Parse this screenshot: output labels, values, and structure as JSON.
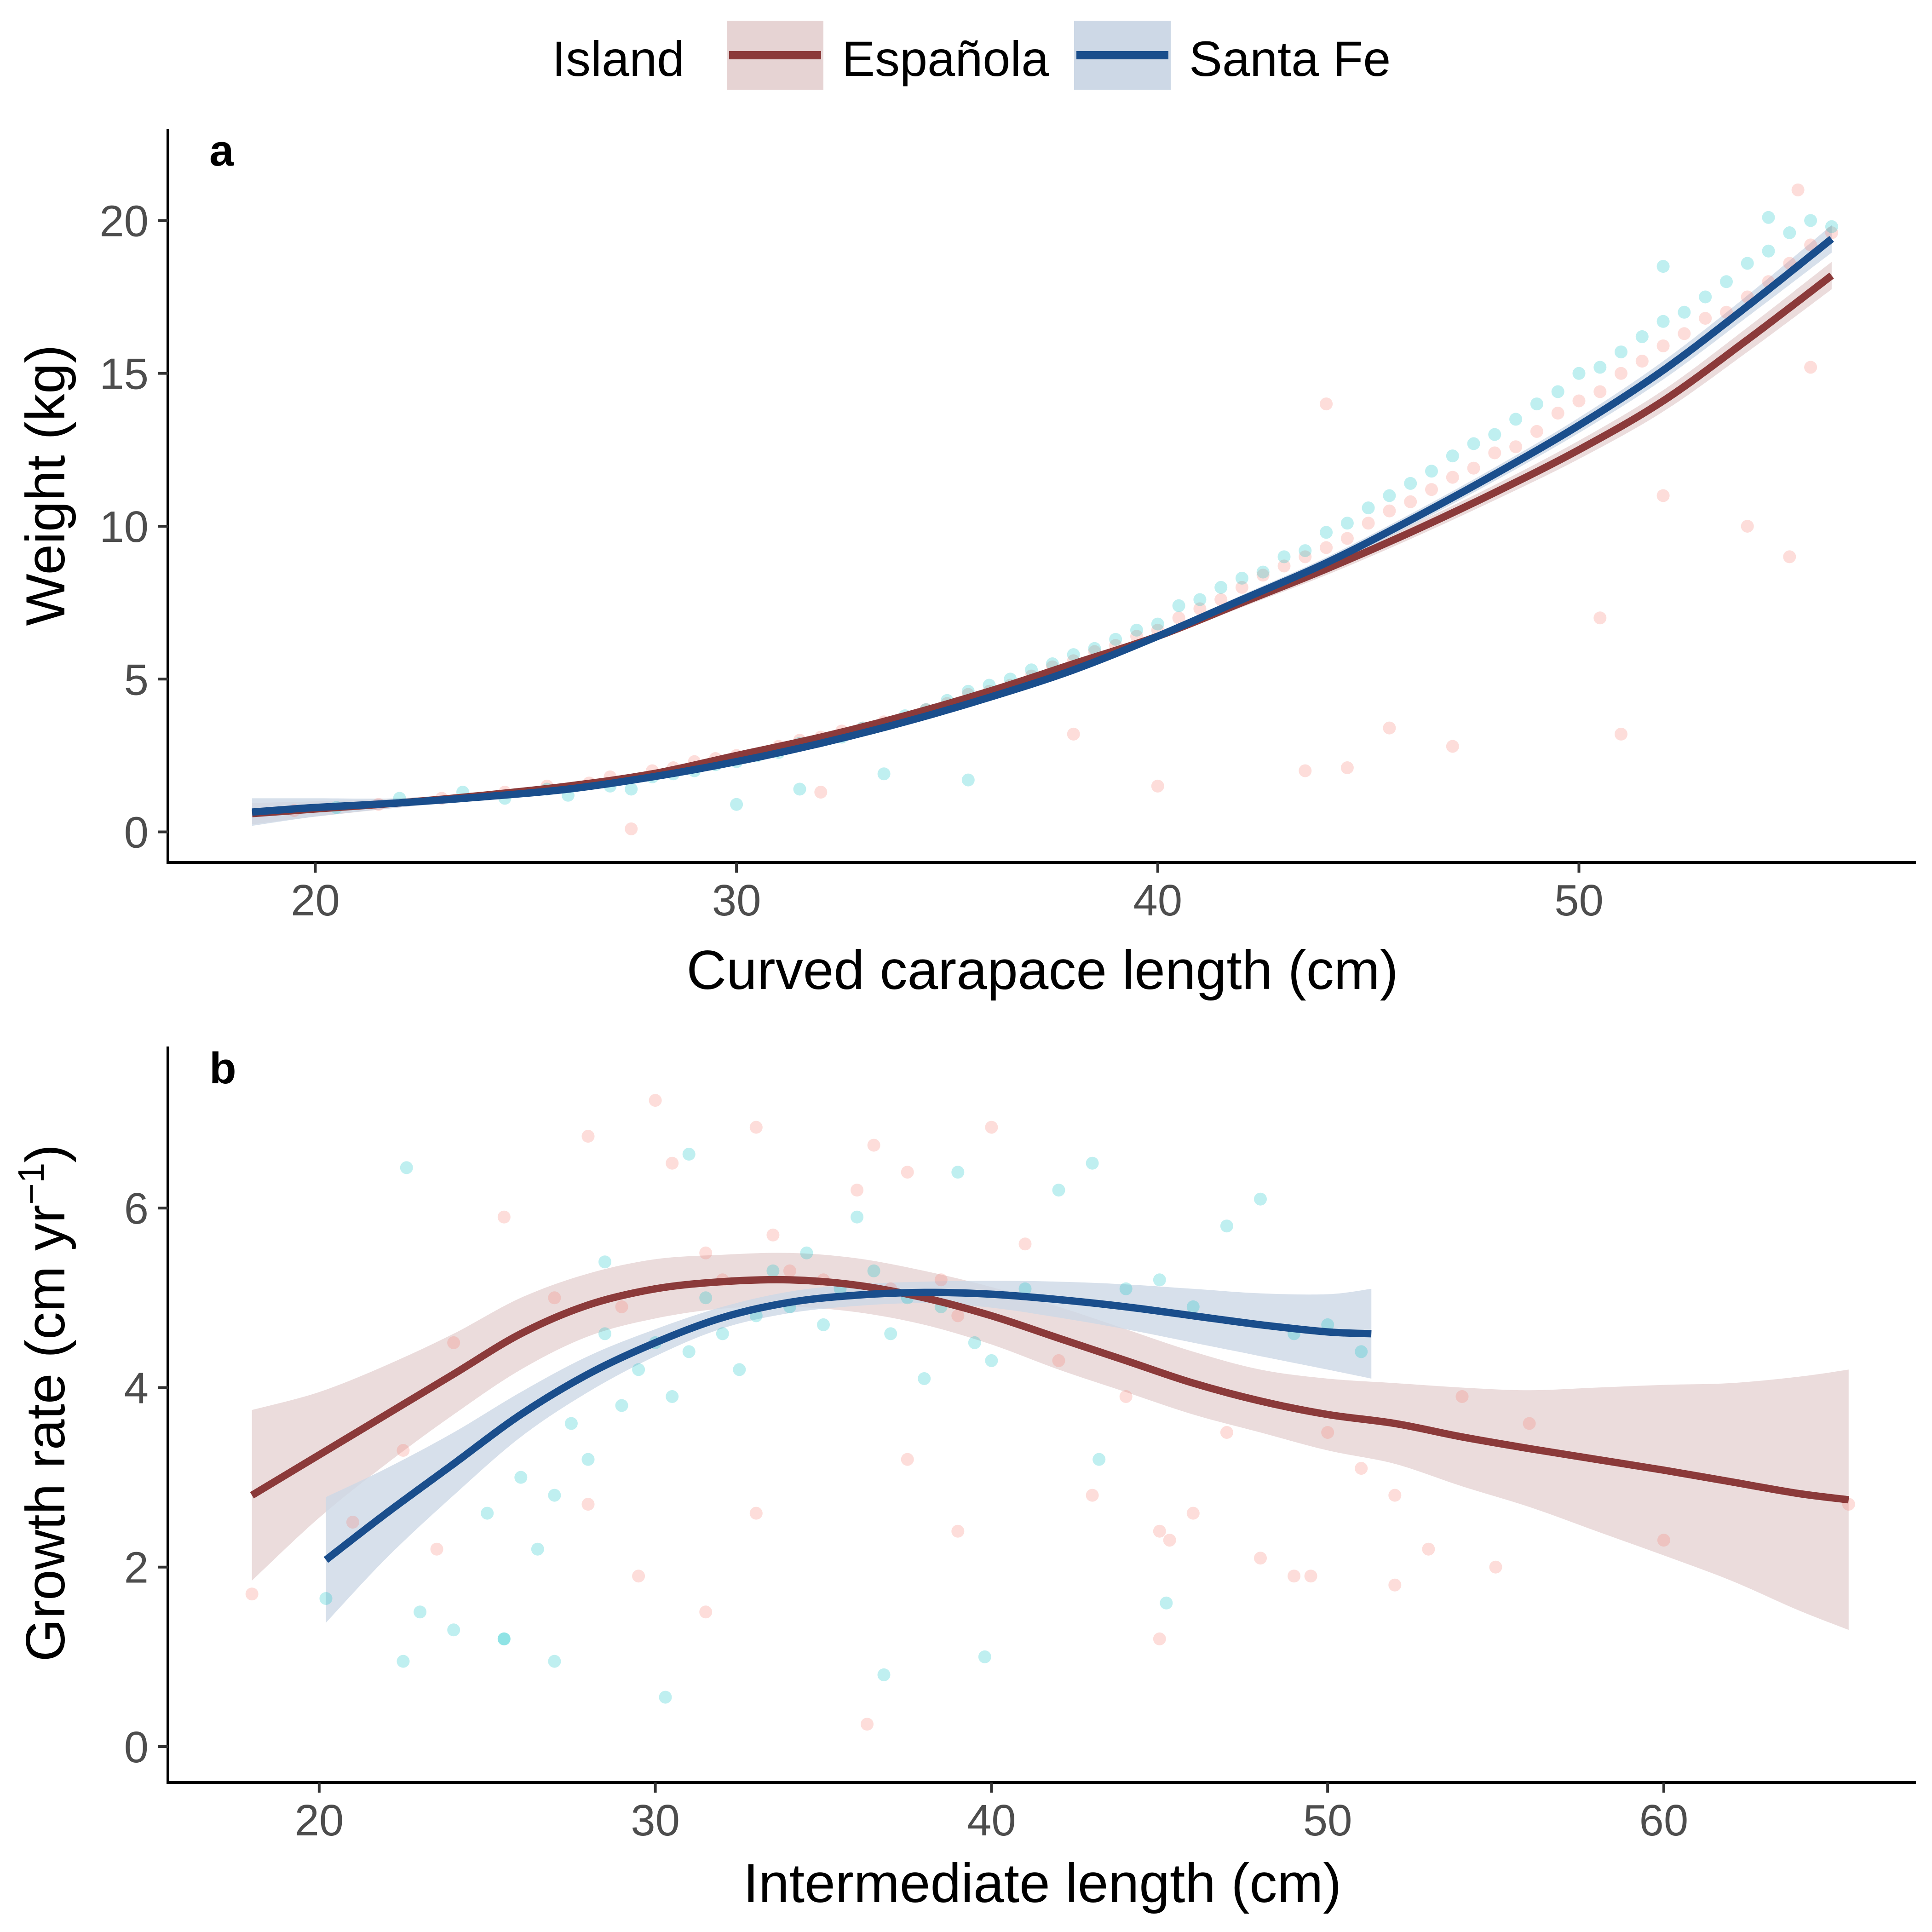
{
  "legend": {
    "title": "Island",
    "entries": [
      {
        "label": "Española",
        "line_color": "#8b3a3a",
        "band_color": "#e6d3d3"
      },
      {
        "label": "Santa Fe",
        "line_color": "#1a4e8c",
        "band_color": "#cdd8e6"
      }
    ]
  },
  "point_colors": {
    "Española": "#f8766d",
    "Santa Fe": "#00bfc4"
  },
  "chart_data": [
    {
      "type": "scatter",
      "panel": "a",
      "xlabel": "Curved carapace length (cm)",
      "ylabel": "Weight (kg)",
      "xlim": [
        16.5,
        58
      ],
      "ylim": [
        -1,
        23
      ],
      "xticks": [
        20,
        30,
        40,
        50
      ],
      "yticks": [
        0,
        5,
        10,
        15,
        20
      ],
      "grid": false,
      "legend_position": "top",
      "series": [
        {
          "name": "Española",
          "kind": "points",
          "x": [
            19.5,
            21.5,
            23.0,
            24.5,
            25.5,
            26.5,
            27.0,
            28.0,
            28.5,
            29.0,
            29.5,
            30.0,
            31.0,
            31.5,
            32.0,
            32.5,
            33.0,
            33.5,
            34.0,
            34.5,
            35.0,
            35.5,
            36.0,
            36.5,
            37.0,
            37.5,
            38.0,
            38.5,
            39.0,
            39.5,
            40.0,
            40.5,
            41.0,
            41.5,
            42.0,
            42.5,
            43.0,
            43.5,
            44.0,
            44.5,
            45.0,
            45.5,
            46.0,
            46.5,
            47.0,
            47.5,
            48.0,
            48.5,
            49.0,
            49.5,
            50.0,
            50.5,
            51.0,
            51.5,
            52.0,
            52.5,
            53.0,
            53.5,
            54.0,
            54.5,
            55.0,
            55.5,
            56.0,
            27.5,
            32.0,
            38.0,
            40.0,
            43.5,
            44.0,
            45.5,
            47.0,
            50.5,
            51.0,
            52.0,
            54.0,
            55.0,
            55.2,
            55.5,
            44.5
          ],
          "y": [
            0.7,
            0.9,
            1.1,
            1.3,
            1.5,
            1.6,
            1.8,
            2.0,
            2.1,
            2.3,
            2.4,
            2.5,
            2.8,
            3.0,
            3.1,
            3.3,
            3.4,
            3.6,
            3.7,
            4.0,
            4.2,
            4.5,
            4.6,
            4.8,
            5.1,
            5.4,
            5.6,
            5.9,
            6.1,
            6.4,
            6.6,
            7.0,
            7.3,
            7.6,
            8.0,
            8.4,
            8.7,
            9.0,
            9.3,
            9.6,
            10.1,
            10.5,
            10.8,
            11.2,
            11.6,
            11.9,
            12.4,
            12.6,
            13.1,
            13.7,
            14.1,
            14.4,
            15.0,
            15.4,
            15.9,
            16.3,
            16.8,
            17.0,
            17.5,
            18.0,
            18.6,
            19.2,
            19.6,
            0.1,
            1.3,
            3.2,
            1.5,
            2.0,
            14.0,
            3.4,
            2.8,
            7.0,
            3.2,
            11.0,
            10.0,
            9.0,
            21.0,
            15.2,
            2.1
          ],
          "color": "#f8766d"
        },
        {
          "name": "Santa Fe",
          "kind": "points",
          "x": [
            20.5,
            22.0,
            23.5,
            24.5,
            25.5,
            26.0,
            27.0,
            27.5,
            28.0,
            28.5,
            29.0,
            29.5,
            30.0,
            30.5,
            31.0,
            31.5,
            32.0,
            32.5,
            33.0,
            33.5,
            34.0,
            34.5,
            35.0,
            35.5,
            36.0,
            36.5,
            37.0,
            37.5,
            38.0,
            38.5,
            39.0,
            39.5,
            40.0,
            40.5,
            41.0,
            41.5,
            42.0,
            42.5,
            43.0,
            43.5,
            44.0,
            44.5,
            45.0,
            45.5,
            46.0,
            46.5,
            47.0,
            47.5,
            48.0,
            48.5,
            49.0,
            49.5,
            50.0,
            50.5,
            51.0,
            51.5,
            52.0,
            52.5,
            53.0,
            53.5,
            54.0,
            54.5,
            55.0,
            55.5,
            56.0,
            30.0,
            31.5,
            33.5,
            35.5,
            52.0,
            54.5
          ],
          "y": [
            0.8,
            1.1,
            1.3,
            1.1,
            1.4,
            1.2,
            1.5,
            1.4,
            1.8,
            1.9,
            2.0,
            2.2,
            2.3,
            2.5,
            2.6,
            2.9,
            3.0,
            3.1,
            3.4,
            3.5,
            3.8,
            4.0,
            4.3,
            4.6,
            4.8,
            5.0,
            5.3,
            5.5,
            5.8,
            6.0,
            6.3,
            6.6,
            6.8,
            7.4,
            7.6,
            8.0,
            8.3,
            8.5,
            9.0,
            9.2,
            9.8,
            10.1,
            10.6,
            11.0,
            11.4,
            11.8,
            12.3,
            12.7,
            13.0,
            13.5,
            14.0,
            14.4,
            15.0,
            15.2,
            15.7,
            16.2,
            16.7,
            17.0,
            17.5,
            18.0,
            18.6,
            19.0,
            19.6,
            20.0,
            19.8,
            0.9,
            1.4,
            1.9,
            1.7,
            18.5,
            20.1
          ],
          "color": "#00bfc4"
        },
        {
          "name": "Española",
          "kind": "smooth",
          "x": [
            18.5,
            20,
            22,
            24,
            26,
            28,
            30,
            32,
            34,
            36,
            38,
            40,
            42,
            44,
            46,
            48,
            50,
            52,
            54,
            56
          ],
          "y": [
            0.6,
            0.75,
            0.95,
            1.2,
            1.5,
            1.9,
            2.5,
            3.1,
            3.8,
            4.6,
            5.5,
            6.4,
            7.5,
            8.6,
            9.8,
            11.1,
            12.5,
            14.1,
            16.1,
            18.2
          ],
          "band_halfwidth": [
            0.35,
            0.25,
            0.15,
            0.1,
            0.1,
            0.1,
            0.1,
            0.1,
            0.1,
            0.1,
            0.1,
            0.12,
            0.15,
            0.2,
            0.22,
            0.25,
            0.3,
            0.35,
            0.4,
            0.45
          ],
          "color": "#8b3a3a"
        },
        {
          "name": "Santa Fe",
          "kind": "smooth",
          "x": [
            18.5,
            20,
            22,
            24,
            26,
            28,
            30,
            32,
            34,
            36,
            38,
            40,
            42,
            44,
            46,
            48,
            50,
            52,
            54,
            56
          ],
          "y": [
            0.65,
            0.8,
            0.95,
            1.15,
            1.4,
            1.8,
            2.3,
            2.9,
            3.6,
            4.4,
            5.3,
            6.4,
            7.6,
            8.8,
            10.2,
            11.7,
            13.3,
            15.1,
            17.2,
            19.4
          ],
          "band_halfwidth": [
            0.45,
            0.3,
            0.15,
            0.1,
            0.1,
            0.1,
            0.1,
            0.1,
            0.1,
            0.1,
            0.1,
            0.12,
            0.15,
            0.18,
            0.2,
            0.22,
            0.25,
            0.3,
            0.35,
            0.45
          ],
          "color": "#1a4e8c"
        }
      ]
    },
    {
      "type": "scatter",
      "panel": "b",
      "xlabel": "Intermediate length (cm)",
      "ylabel": "Growth rate (cm yr",
      "ylabel_superscript": "−1",
      "ylabel_suffix": ")",
      "xlim": [
        15.5,
        67.5
      ],
      "ylim": [
        -0.4,
        7.8
      ],
      "xticks": [
        20,
        30,
        40,
        50,
        60
      ],
      "yticks": [
        0,
        2,
        4,
        6
      ],
      "grid": false,
      "series": [
        {
          "name": "Española",
          "kind": "points",
          "x": [
            18.0,
            21.0,
            22.5,
            24.0,
            25.5,
            27.0,
            28.0,
            29.0,
            30.0,
            30.5,
            31.5,
            32.0,
            33.0,
            33.5,
            34.0,
            35.0,
            36.0,
            36.5,
            37.0,
            37.5,
            38.5,
            39.0,
            40.0,
            41.0,
            42.0,
            43.0,
            44.0,
            45.0,
            46.0,
            47.0,
            48.0,
            49.0,
            50.0,
            51.0,
            52.0,
            53.0,
            54.0,
            55.0,
            56.0,
            60.0,
            65.5,
            23.5,
            28.0,
            29.5,
            31.5,
            33.0,
            36.3,
            37.5,
            39.0,
            45.0,
            45.3,
            49.5,
            52.0
          ],
          "y": [
            1.7,
            2.5,
            3.3,
            4.5,
            5.9,
            5.0,
            6.8,
            4.9,
            7.2,
            6.5,
            5.5,
            5.2,
            6.9,
            5.7,
            5.3,
            5.2,
            6.2,
            6.7,
            5.1,
            6.4,
            5.2,
            4.8,
            6.9,
            5.6,
            4.3,
            2.8,
            3.9,
            2.4,
            2.6,
            3.5,
            2.1,
            1.9,
            3.5,
            3.1,
            2.8,
            2.2,
            3.9,
            2.0,
            3.6,
            2.3,
            2.7,
            2.2,
            2.7,
            1.9,
            1.5,
            2.6,
            0.25,
            3.2,
            2.4,
            1.2,
            2.3,
            1.9,
            1.8
          ],
          "color": "#f8766d"
        },
        {
          "name": "Santa Fe",
          "kind": "points",
          "x": [
            20.2,
            22.6,
            23.0,
            24.0,
            25.0,
            25.5,
            26.0,
            26.5,
            27.0,
            27.5,
            28.0,
            28.5,
            29.0,
            29.5,
            30.0,
            30.5,
            31.0,
            31.5,
            32.0,
            32.5,
            33.0,
            33.5,
            34.0,
            34.5,
            35.0,
            35.5,
            36.0,
            36.5,
            37.0,
            37.5,
            38.0,
            38.5,
            39.0,
            39.5,
            40.0,
            41.0,
            42.0,
            43.0,
            44.0,
            45.0,
            46.0,
            47.0,
            48.0,
            49.0,
            50.0,
            51.0,
            22.5,
            25.5,
            27.0,
            30.3,
            36.8,
            39.8,
            31.0,
            28.5,
            43.2,
            45.2
          ],
          "y": [
            1.65,
            6.45,
            1.5,
            1.3,
            2.6,
            1.2,
            3.0,
            2.2,
            2.8,
            3.6,
            3.2,
            4.6,
            3.8,
            4.2,
            4.5,
            3.9,
            4.4,
            5.0,
            4.6,
            4.2,
            4.8,
            5.3,
            4.9,
            5.5,
            4.7,
            5.1,
            5.9,
            5.3,
            4.6,
            5.0,
            4.1,
            4.9,
            6.4,
            4.5,
            4.3,
            5.1,
            6.2,
            6.5,
            5.1,
            5.2,
            4.9,
            5.8,
            6.1,
            4.6,
            4.7,
            4.4,
            0.95,
            1.2,
            0.95,
            0.55,
            0.8,
            1.0,
            6.6,
            5.4,
            3.2,
            1.6
          ],
          "color": "#00bfc4"
        },
        {
          "name": "Española",
          "kind": "smooth",
          "x": [
            18.0,
            20,
            22,
            24,
            26,
            28,
            30,
            32,
            34,
            36,
            38,
            40,
            42,
            44,
            46,
            48,
            50,
            52,
            54,
            56,
            58,
            60,
            62,
            64,
            65.5
          ],
          "y": [
            2.8,
            3.25,
            3.7,
            4.15,
            4.6,
            4.92,
            5.1,
            5.18,
            5.2,
            5.14,
            5.0,
            4.8,
            4.55,
            4.3,
            4.05,
            3.85,
            3.7,
            3.6,
            3.45,
            3.32,
            3.2,
            3.08,
            2.95,
            2.82,
            2.75
          ],
          "band_halfwidth": [
            0.95,
            0.7,
            0.55,
            0.45,
            0.4,
            0.35,
            0.33,
            0.3,
            0.3,
            0.3,
            0.3,
            0.32,
            0.35,
            0.35,
            0.35,
            0.35,
            0.4,
            0.45,
            0.55,
            0.65,
            0.8,
            0.95,
            1.1,
            1.3,
            1.45
          ],
          "color": "#8b3a3a"
        },
        {
          "name": "Santa Fe",
          "kind": "smooth",
          "x": [
            20.2,
            22,
            24,
            26,
            28,
            30,
            32,
            34,
            36,
            38,
            40,
            42,
            44,
            46,
            48,
            50,
            51.3
          ],
          "y": [
            2.08,
            2.6,
            3.15,
            3.7,
            4.15,
            4.5,
            4.78,
            4.95,
            5.03,
            5.06,
            5.04,
            4.98,
            4.9,
            4.8,
            4.7,
            4.62,
            4.6
          ],
          "band_halfwidth": [
            0.7,
            0.5,
            0.35,
            0.25,
            0.2,
            0.15,
            0.12,
            0.12,
            0.12,
            0.12,
            0.15,
            0.2,
            0.25,
            0.3,
            0.35,
            0.42,
            0.5
          ],
          "color": "#1a4e8c"
        }
      ]
    }
  ]
}
